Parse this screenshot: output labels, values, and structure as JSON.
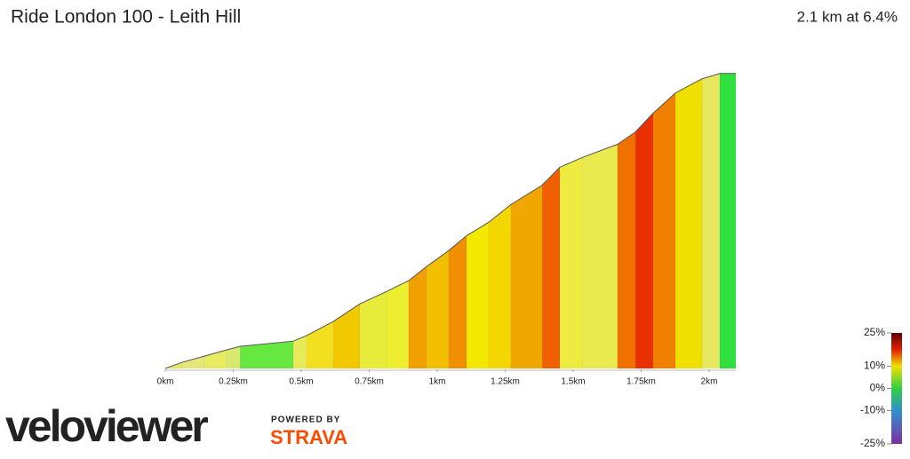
{
  "chart_data": {
    "type": "profile",
    "title": "Ride London 100 - Leith Hill",
    "subtitle": "2.1 km at 6.4%",
    "x": [
      0,
      0.062,
      0.144,
      0.225,
      0.275,
      0.471,
      0.52,
      0.618,
      0.716,
      0.814,
      0.895,
      0.961,
      1.042,
      1.108,
      1.19,
      1.271,
      1.386,
      1.451,
      1.533,
      1.663,
      1.729,
      1.794,
      1.876,
      1.974,
      2.039,
      2.098
    ],
    "values": [
      0,
      2.8,
      5.6,
      8.4,
      10,
      12.4,
      14.9,
      21.3,
      29.3,
      34.9,
      39.8,
      46.2,
      53.4,
      60.2,
      66.3,
      74.3,
      83.1,
      91.2,
      95.6,
      101.6,
      107.2,
      115.7,
      124.9,
      131.3,
      133.7,
      133.7
    ],
    "segment_colors": [
      "#e8e86a",
      "#e6e67a",
      "#e8ea60",
      "#d8e870",
      "#66e840",
      "#e8ea5a",
      "#f2e020",
      "#f2c800",
      "#e8ec3a",
      "#eeee30",
      "#f0a000",
      "#f2c000",
      "#f09000",
      "#f2e800",
      "#f2d800",
      "#f0a800",
      "#f06000",
      "#eeec40",
      "#e8ea50",
      "#f07000",
      "#e83000",
      "#f08000",
      "#f0e000",
      "#e8e860",
      "#30e040"
    ],
    "xlim": [
      0,
      2.1
    ],
    "ylim": [
      0,
      134
    ],
    "xticks": [
      {
        "value": 0,
        "label": "0km"
      },
      {
        "value": 0.25,
        "label": "0.25km"
      },
      {
        "value": 0.5,
        "label": "0.5km"
      },
      {
        "value": 0.75,
        "label": "0.75km"
      },
      {
        "value": 1,
        "label": "1km"
      },
      {
        "value": 1.25,
        "label": "1.25km"
      },
      {
        "value": 1.5,
        "label": "1.5km"
      },
      {
        "value": 1.75,
        "label": "1.75km"
      },
      {
        "value": 2,
        "label": "2km"
      }
    ],
    "colorbar": {
      "lim": [
        -25,
        25
      ],
      "ticks": [
        {
          "value": 25,
          "label": "25%"
        },
        {
          "value": 10,
          "label": "10%"
        },
        {
          "value": 0,
          "label": "0%"
        },
        {
          "value": -10,
          "label": "-10%"
        },
        {
          "value": -25,
          "label": "-25%"
        }
      ]
    }
  },
  "branding": {
    "logo": "veloviewer",
    "powered_by": "POWERED BY",
    "strava": "STRAVA"
  }
}
